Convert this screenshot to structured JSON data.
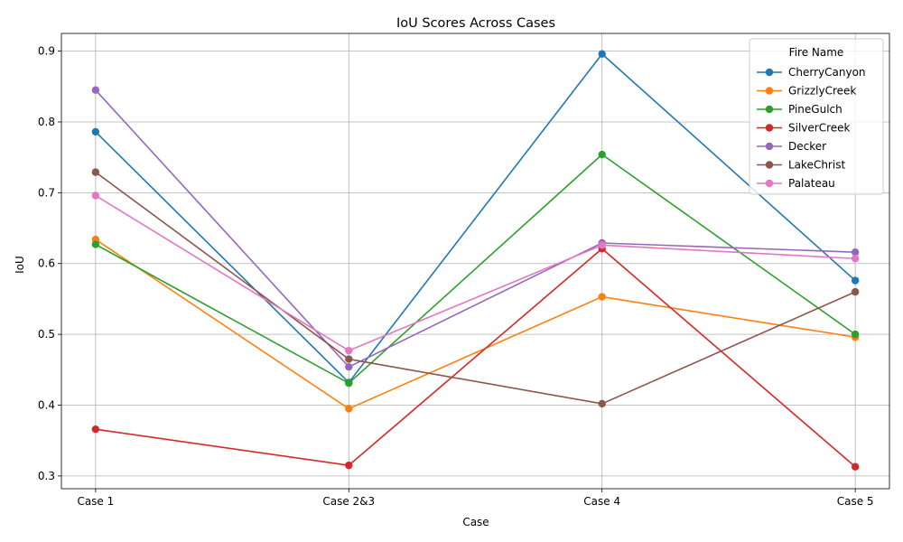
{
  "chart_data": {
    "type": "line",
    "title": "IoU Scores Across Cases",
    "xlabel": "Case",
    "ylabel": "IoU",
    "categories": [
      "Case 1",
      "Case 2&3",
      "Case 4",
      "Case 5"
    ],
    "ylim": [
      0.282,
      0.925
    ],
    "yticks": [
      0.3,
      0.4,
      0.5,
      0.6,
      0.7,
      0.8,
      0.9
    ],
    "ytick_labels": [
      "0.3",
      "0.4",
      "0.5",
      "0.6",
      "0.7",
      "0.8",
      "0.9"
    ],
    "grid": true,
    "legend": {
      "title": "Fire Name",
      "placement": "top-right"
    },
    "series": [
      {
        "name": "CherryCanyon",
        "color": "#1f77b4",
        "values": [
          0.786,
          0.432,
          0.896,
          0.576
        ]
      },
      {
        "name": "GrizzlyCreek",
        "color": "#ff7f0e",
        "values": [
          0.634,
          0.395,
          0.553,
          0.496
        ]
      },
      {
        "name": "PineGulch",
        "color": "#2ca02c",
        "values": [
          0.627,
          0.431,
          0.754,
          0.5
        ]
      },
      {
        "name": "SilverCreek",
        "color": "#d62728",
        "values": [
          0.366,
          0.315,
          0.621,
          0.313
        ]
      },
      {
        "name": "Decker",
        "color": "#9467bd",
        "values": [
          0.845,
          0.454,
          0.629,
          0.616
        ]
      },
      {
        "name": "LakeChrist",
        "color": "#8c564b",
        "values": [
          0.729,
          0.465,
          0.402,
          0.56
        ]
      },
      {
        "name": "Palateau",
        "color": "#e377c2",
        "values": [
          0.696,
          0.477,
          0.626,
          0.607
        ]
      }
    ]
  }
}
